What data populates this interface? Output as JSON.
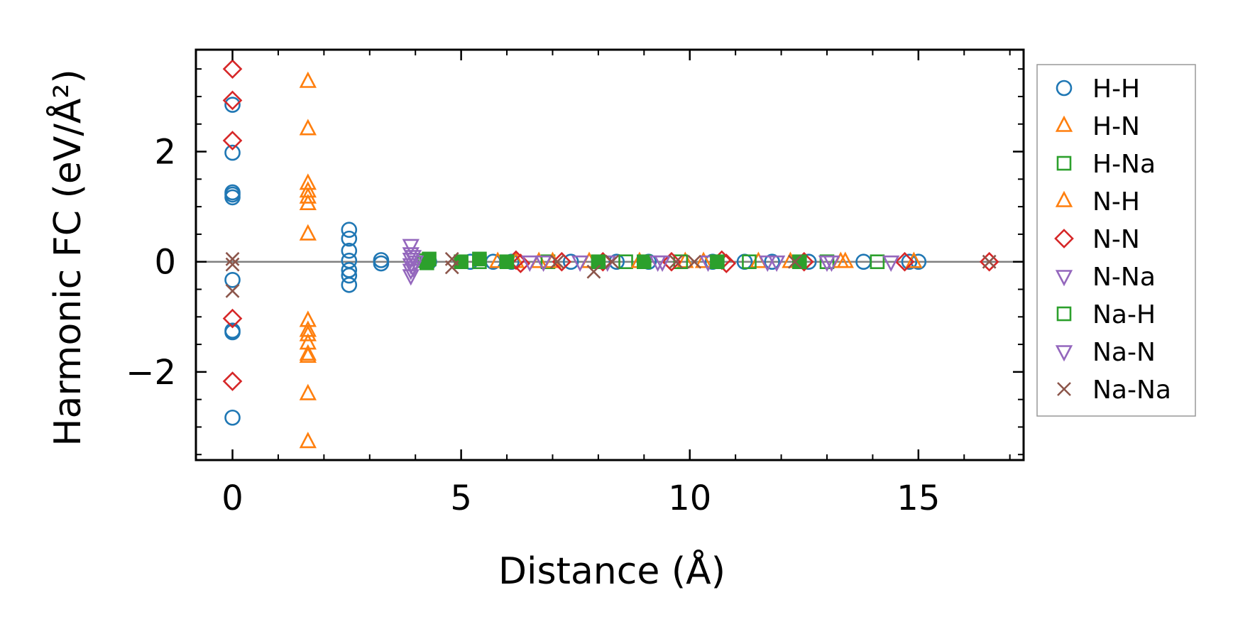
{
  "chart_data": {
    "type": "scatter",
    "title": "",
    "xlabel": "Distance (Å)",
    "ylabel": "Harmonic FC (eV/Å²)",
    "xlim": [
      -0.8,
      17.3
    ],
    "ylim": [
      -3.6,
      3.85
    ],
    "xticks": [
      0,
      5,
      10,
      15
    ],
    "xtick_labels": [
      "0",
      "5",
      "10",
      "15"
    ],
    "yticks": [
      -2,
      0,
      2
    ],
    "ytick_labels": [
      "−2",
      "0",
      "2"
    ],
    "x_minor_step": 1,
    "y_minor_step": 0.5,
    "grid": false,
    "reference_line_y": 0,
    "legend_position": "right",
    "series": [
      {
        "name": "H-H",
        "marker": "circle",
        "color": "#1f77b4",
        "points": [
          [
            0,
            2.85
          ],
          [
            0,
            1.98
          ],
          [
            0,
            1.26
          ],
          [
            0,
            1.22
          ],
          [
            0,
            1.17
          ],
          [
            0,
            -0.33
          ],
          [
            0,
            -1.25
          ],
          [
            0,
            -1.28
          ],
          [
            0,
            -2.83
          ],
          [
            2.55,
            0.58
          ],
          [
            2.55,
            0.42
          ],
          [
            2.55,
            0.2
          ],
          [
            2.55,
            0.02
          ],
          [
            2.55,
            -0.15
          ],
          [
            2.55,
            -0.25
          ],
          [
            2.55,
            -0.42
          ],
          [
            3.25,
            0.03
          ],
          [
            3.25,
            -0.03
          ],
          [
            4.3,
            0.0
          ],
          [
            5.2,
            0.0
          ],
          [
            5.7,
            0.0
          ],
          [
            6.1,
            0.0
          ],
          [
            7.4,
            0.0
          ],
          [
            8.4,
            0.0
          ],
          [
            9.1,
            0.0
          ],
          [
            10.5,
            0.0
          ],
          [
            11.2,
            0.0
          ],
          [
            11.8,
            0.0
          ],
          [
            12.6,
            0.0
          ],
          [
            13.8,
            0.0
          ],
          [
            14.8,
            0.0
          ],
          [
            15.0,
            0.0
          ]
        ]
      },
      {
        "name": "H-N",
        "marker": "triangle-up",
        "color": "#ff7f0e",
        "points": [
          [
            1.65,
            3.27
          ],
          [
            1.65,
            2.41
          ],
          [
            1.65,
            1.42
          ],
          [
            1.65,
            1.28
          ],
          [
            1.65,
            1.17
          ],
          [
            1.65,
            1.05
          ],
          [
            1.65,
            0.5
          ],
          [
            1.65,
            -1.07
          ],
          [
            1.65,
            -1.25
          ],
          [
            1.65,
            -1.33
          ],
          [
            1.65,
            -1.48
          ],
          [
            1.65,
            -1.68
          ],
          [
            1.65,
            -1.72
          ],
          [
            1.65,
            -2.4
          ],
          [
            1.65,
            -3.27
          ],
          [
            5.8,
            0.0
          ],
          [
            6.7,
            0.0
          ],
          [
            7.8,
            0.0
          ],
          [
            9.9,
            0.0
          ],
          [
            11.5,
            0.0
          ],
          [
            13.3,
            0.0
          ],
          [
            14.9,
            0.0
          ]
        ]
      },
      {
        "name": "H-Na",
        "marker": "square-open",
        "color": "#2ca02c",
        "points": [
          [
            4.2,
            0.02
          ],
          [
            5.4,
            0.0
          ],
          [
            6.9,
            0.0
          ],
          [
            8.6,
            0.0
          ],
          [
            9.8,
            0.0
          ],
          [
            11.3,
            0.0
          ],
          [
            13.0,
            0.0
          ],
          [
            14.1,
            0.0
          ]
        ]
      },
      {
        "name": "N-H",
        "marker": "triangle-up",
        "color": "#ff7f0e",
        "points": [
          [
            6.2,
            0.0
          ],
          [
            7.0,
            0.0
          ],
          [
            8.9,
            0.0
          ],
          [
            10.3,
            0.0
          ],
          [
            12.2,
            0.0
          ],
          [
            13.4,
            0.0
          ]
        ]
      },
      {
        "name": "N-N",
        "marker": "diamond",
        "color": "#d62728",
        "points": [
          [
            0,
            3.5
          ],
          [
            0,
            2.93
          ],
          [
            0,
            2.2
          ],
          [
            0,
            -1.03
          ],
          [
            0,
            -2.17
          ],
          [
            6.2,
            0.03
          ],
          [
            6.3,
            -0.03
          ],
          [
            7.2,
            0.0
          ],
          [
            8.1,
            0.0
          ],
          [
            9.6,
            0.0
          ],
          [
            10.7,
            0.03
          ],
          [
            10.8,
            -0.03
          ],
          [
            12.5,
            0.0
          ],
          [
            14.7,
            0.0
          ],
          [
            16.55,
            0.0
          ]
        ]
      },
      {
        "name": "N-Na",
        "marker": "triangle-down",
        "color": "#9467bd",
        "points": [
          [
            3.9,
            0.3
          ],
          [
            3.9,
            0.15
          ],
          [
            3.9,
            0.05
          ],
          [
            3.9,
            -0.05
          ],
          [
            3.9,
            -0.15
          ],
          [
            3.9,
            -0.25
          ],
          [
            6.5,
            0.0
          ],
          [
            7.6,
            0.0
          ],
          [
            8.2,
            0.0
          ],
          [
            9.4,
            0.0
          ],
          [
            10.4,
            0.0
          ],
          [
            11.9,
            0.0
          ],
          [
            13.1,
            0.0
          ],
          [
            14.4,
            0.0
          ]
        ]
      },
      {
        "name": "Na-H",
        "marker": "square-filled",
        "color": "#2ca02c",
        "points": [
          [
            4.25,
            -0.02
          ],
          [
            4.3,
            0.05
          ],
          [
            5.0,
            0.0
          ],
          [
            5.4,
            0.05
          ],
          [
            6.0,
            0.0
          ],
          [
            8.0,
            0.0
          ],
          [
            9.0,
            0.0
          ],
          [
            10.6,
            0.0
          ],
          [
            12.4,
            0.0
          ]
        ]
      },
      {
        "name": "Na-N",
        "marker": "triangle-down",
        "color": "#9467bd",
        "points": [
          [
            3.95,
            0.1
          ],
          [
            3.95,
            -0.1
          ],
          [
            4.0,
            0.0
          ],
          [
            6.8,
            0.0
          ],
          [
            9.3,
            0.0
          ],
          [
            11.7,
            0.0
          ],
          [
            13.0,
            0.0
          ]
        ]
      },
      {
        "name": "Na-Na",
        "marker": "x",
        "color": "#8c564b",
        "points": [
          [
            0,
            0.05
          ],
          [
            0,
            -0.05
          ],
          [
            0,
            -0.53
          ],
          [
            4.8,
            0.05
          ],
          [
            4.8,
            -0.1
          ],
          [
            7.1,
            0.0
          ],
          [
            7.9,
            -0.18
          ],
          [
            8.3,
            0.0
          ],
          [
            9.7,
            0.0
          ],
          [
            10.1,
            0.0
          ],
          [
            12.3,
            0.0
          ],
          [
            16.55,
            0.0
          ]
        ]
      }
    ]
  }
}
